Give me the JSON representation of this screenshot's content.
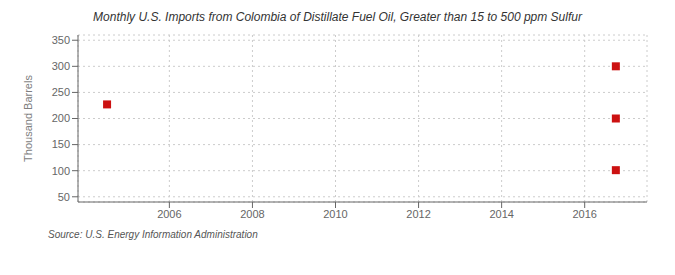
{
  "chart_data": {
    "type": "scatter",
    "title": "Monthly U.S. Imports from Colombia of Distillate Fuel Oil, Greater than 15 to 500 ppm Sulfur",
    "ylabel": "Thousand Barrels",
    "annotation": "Source: U.S. Energy Information Administration",
    "x": [
      2004.5,
      2016.75,
      2016.75,
      2016.75
    ],
    "values": [
      227,
      300,
      200,
      101
    ],
    "color": "#cc1111",
    "marker": "square",
    "xlim": [
      2003.8,
      2017.5
    ],
    "ylim": [
      40,
      360
    ],
    "xticks": [
      2006,
      2008,
      2010,
      2012,
      2014,
      2016
    ],
    "yticks": [
      50,
      100,
      150,
      200,
      250,
      300,
      350
    ],
    "grid": true
  }
}
